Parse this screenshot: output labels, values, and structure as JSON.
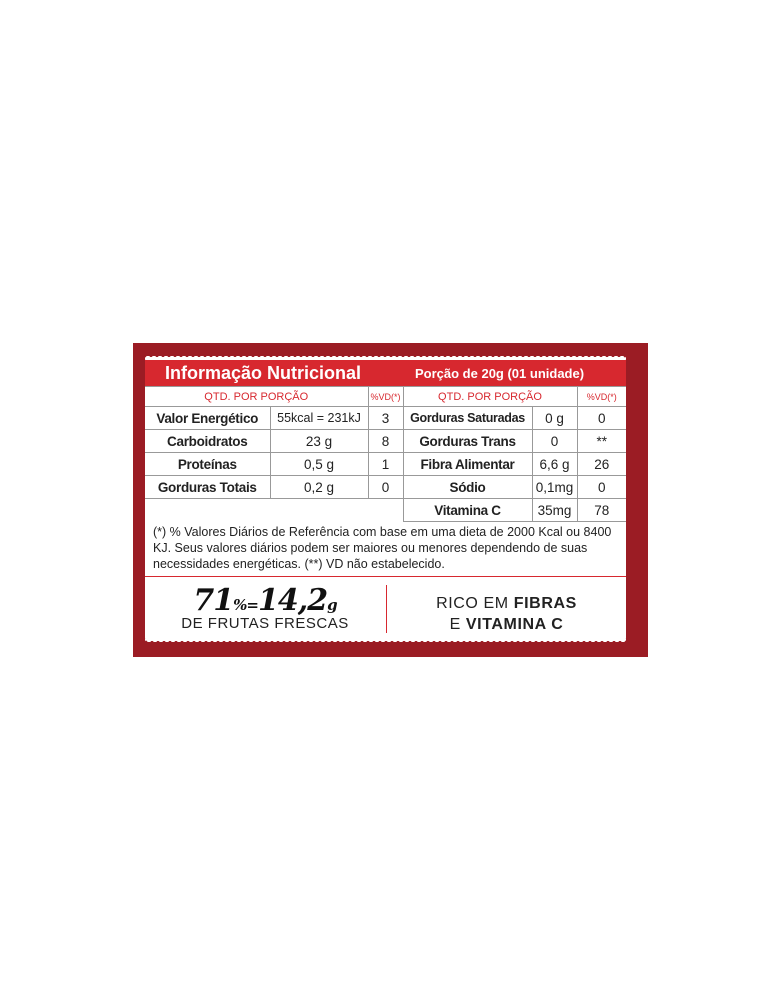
{
  "header": {
    "title": "Informação Nutricional",
    "portion": "Porção de 20g (01 unidade)"
  },
  "table": {
    "col_header": "QTD. POR PORÇÃO",
    "vd_header": "%VD(*)",
    "left": [
      {
        "name": "Valor Energético",
        "qty": "55kcal = 231kJ",
        "vd": "3"
      },
      {
        "name": "Carboidratos",
        "qty": "23 g",
        "vd": "8"
      },
      {
        "name": "Proteínas",
        "qty": "0,5 g",
        "vd": "1"
      },
      {
        "name": "Gorduras Totais",
        "qty": "0,2 g",
        "vd": "0"
      }
    ],
    "right": [
      {
        "name": "Gorduras Saturadas",
        "qty": "0 g",
        "vd": "0"
      },
      {
        "name": "Gorduras Trans",
        "qty": "0",
        "vd": "**"
      },
      {
        "name": "Fibra Alimentar",
        "qty": "6,6 g",
        "vd": "26"
      },
      {
        "name": "Sódio",
        "qty": "0,1mg",
        "vd": "0"
      },
      {
        "name": "Vitamina C",
        "qty": "35mg",
        "vd": "78"
      }
    ]
  },
  "footnote": "(*) % Valores Diários de Referência com base em uma dieta de 2000 Kcal ou 8400 KJ. Seus valores diários podem ser maiores ou menores dependendo de suas necessidades energéticas. (**) VD não estabelecido.",
  "fruit": {
    "percent": "71",
    "percent_sign": "%",
    "equals": "=",
    "grams": "14,2",
    "unit": "g",
    "label": "DE FRUTAS FRESCAS"
  },
  "claim": {
    "line1_plain": "RICO EM ",
    "line1_bold": "FIBRAS",
    "line2_plain": "E ",
    "line2_bold": "VITAMINA C"
  },
  "colors": {
    "panel": "#9b1c24",
    "accent": "#d7282f"
  }
}
